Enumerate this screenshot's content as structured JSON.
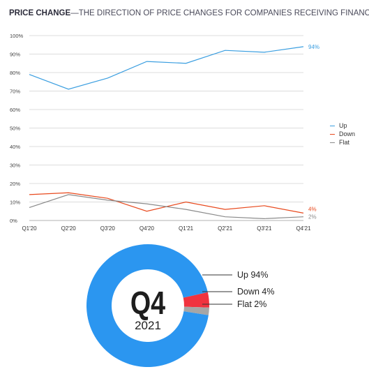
{
  "title": {
    "main": "PRICE CHANGE",
    "sub": "—THE DIRECTION OF PRICE CHANGES FOR COMPANIES RECEIVING FINANCING"
  },
  "chart_data": [
    {
      "type": "line",
      "title": "",
      "categories": [
        "Q1'20",
        "Q2'20",
        "Q3'20",
        "Q4'20",
        "Q1'21",
        "Q2'21",
        "Q3'21",
        "Q4'21"
      ],
      "ylim": [
        0,
        100
      ],
      "yticks": [
        "0%",
        "10%",
        "20%",
        "30%",
        "40%",
        "50%",
        "60%",
        "70%",
        "80%",
        "90%",
        "100%"
      ],
      "grid": true,
      "legend": "right",
      "series": [
        {
          "name": "Up",
          "color": "#3a9ee0",
          "values": [
            79,
            71,
            77,
            86,
            85,
            92,
            91,
            94
          ],
          "end_label": "94%"
        },
        {
          "name": "Down",
          "color": "#e8491d",
          "values": [
            14,
            15,
            12,
            5,
            10,
            6,
            8,
            4
          ],
          "end_label": "4%"
        },
        {
          "name": "Flat",
          "color": "#8a8a8a",
          "values": [
            7,
            14,
            11,
            9,
            6,
            2,
            1,
            2
          ],
          "end_label": "2%"
        }
      ]
    },
    {
      "type": "pie",
      "center_label": "Q4",
      "center_sublabel": "2021",
      "slices": [
        {
          "name": "Up",
          "value": 94,
          "label": "Up 94%",
          "color": "#2b96f0"
        },
        {
          "name": "Down",
          "value": 4,
          "label": "Down 4%",
          "color": "#f0333f"
        },
        {
          "name": "Flat",
          "value": 2,
          "label": "Flat 2%",
          "color": "#a6a6a6"
        }
      ]
    }
  ]
}
